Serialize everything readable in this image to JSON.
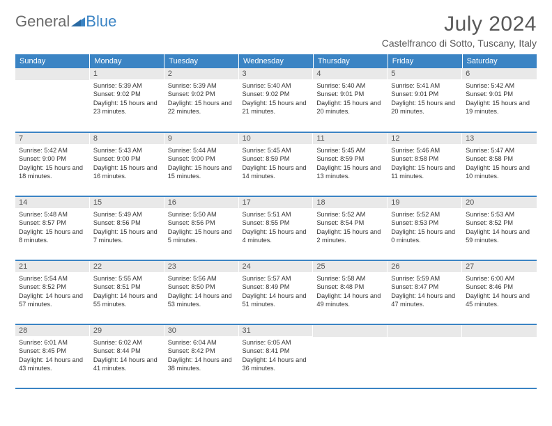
{
  "logo": {
    "text_general": "General",
    "text_blue": "Blue"
  },
  "title": "July 2024",
  "location": "Castelfranco di Sotto, Tuscany, Italy",
  "colors": {
    "header_bg": "#3b84c4",
    "header_text": "#ffffff",
    "daynum_bg": "#e9e9e9",
    "border": "#3b84c4",
    "body_text": "#333333",
    "title_text": "#595959",
    "logo_gray": "#6b6b6b",
    "logo_blue": "#3b84c4"
  },
  "day_headers": [
    "Sunday",
    "Monday",
    "Tuesday",
    "Wednesday",
    "Thursday",
    "Friday",
    "Saturday"
  ],
  "weeks": [
    [
      {
        "n": "",
        "sunrise": "",
        "sunset": "",
        "daylight": ""
      },
      {
        "n": "1",
        "sunrise": "Sunrise: 5:39 AM",
        "sunset": "Sunset: 9:02 PM",
        "daylight": "Daylight: 15 hours and 23 minutes."
      },
      {
        "n": "2",
        "sunrise": "Sunrise: 5:39 AM",
        "sunset": "Sunset: 9:02 PM",
        "daylight": "Daylight: 15 hours and 22 minutes."
      },
      {
        "n": "3",
        "sunrise": "Sunrise: 5:40 AM",
        "sunset": "Sunset: 9:02 PM",
        "daylight": "Daylight: 15 hours and 21 minutes."
      },
      {
        "n": "4",
        "sunrise": "Sunrise: 5:40 AM",
        "sunset": "Sunset: 9:01 PM",
        "daylight": "Daylight: 15 hours and 20 minutes."
      },
      {
        "n": "5",
        "sunrise": "Sunrise: 5:41 AM",
        "sunset": "Sunset: 9:01 PM",
        "daylight": "Daylight: 15 hours and 20 minutes."
      },
      {
        "n": "6",
        "sunrise": "Sunrise: 5:42 AM",
        "sunset": "Sunset: 9:01 PM",
        "daylight": "Daylight: 15 hours and 19 minutes."
      }
    ],
    [
      {
        "n": "7",
        "sunrise": "Sunrise: 5:42 AM",
        "sunset": "Sunset: 9:00 PM",
        "daylight": "Daylight: 15 hours and 18 minutes."
      },
      {
        "n": "8",
        "sunrise": "Sunrise: 5:43 AM",
        "sunset": "Sunset: 9:00 PM",
        "daylight": "Daylight: 15 hours and 16 minutes."
      },
      {
        "n": "9",
        "sunrise": "Sunrise: 5:44 AM",
        "sunset": "Sunset: 9:00 PM",
        "daylight": "Daylight: 15 hours and 15 minutes."
      },
      {
        "n": "10",
        "sunrise": "Sunrise: 5:45 AM",
        "sunset": "Sunset: 8:59 PM",
        "daylight": "Daylight: 15 hours and 14 minutes."
      },
      {
        "n": "11",
        "sunrise": "Sunrise: 5:45 AM",
        "sunset": "Sunset: 8:59 PM",
        "daylight": "Daylight: 15 hours and 13 minutes."
      },
      {
        "n": "12",
        "sunrise": "Sunrise: 5:46 AM",
        "sunset": "Sunset: 8:58 PM",
        "daylight": "Daylight: 15 hours and 11 minutes."
      },
      {
        "n": "13",
        "sunrise": "Sunrise: 5:47 AM",
        "sunset": "Sunset: 8:58 PM",
        "daylight": "Daylight: 15 hours and 10 minutes."
      }
    ],
    [
      {
        "n": "14",
        "sunrise": "Sunrise: 5:48 AM",
        "sunset": "Sunset: 8:57 PM",
        "daylight": "Daylight: 15 hours and 8 minutes."
      },
      {
        "n": "15",
        "sunrise": "Sunrise: 5:49 AM",
        "sunset": "Sunset: 8:56 PM",
        "daylight": "Daylight: 15 hours and 7 minutes."
      },
      {
        "n": "16",
        "sunrise": "Sunrise: 5:50 AM",
        "sunset": "Sunset: 8:56 PM",
        "daylight": "Daylight: 15 hours and 5 minutes."
      },
      {
        "n": "17",
        "sunrise": "Sunrise: 5:51 AM",
        "sunset": "Sunset: 8:55 PM",
        "daylight": "Daylight: 15 hours and 4 minutes."
      },
      {
        "n": "18",
        "sunrise": "Sunrise: 5:52 AM",
        "sunset": "Sunset: 8:54 PM",
        "daylight": "Daylight: 15 hours and 2 minutes."
      },
      {
        "n": "19",
        "sunrise": "Sunrise: 5:52 AM",
        "sunset": "Sunset: 8:53 PM",
        "daylight": "Daylight: 15 hours and 0 minutes."
      },
      {
        "n": "20",
        "sunrise": "Sunrise: 5:53 AM",
        "sunset": "Sunset: 8:52 PM",
        "daylight": "Daylight: 14 hours and 59 minutes."
      }
    ],
    [
      {
        "n": "21",
        "sunrise": "Sunrise: 5:54 AM",
        "sunset": "Sunset: 8:52 PM",
        "daylight": "Daylight: 14 hours and 57 minutes."
      },
      {
        "n": "22",
        "sunrise": "Sunrise: 5:55 AM",
        "sunset": "Sunset: 8:51 PM",
        "daylight": "Daylight: 14 hours and 55 minutes."
      },
      {
        "n": "23",
        "sunrise": "Sunrise: 5:56 AM",
        "sunset": "Sunset: 8:50 PM",
        "daylight": "Daylight: 14 hours and 53 minutes."
      },
      {
        "n": "24",
        "sunrise": "Sunrise: 5:57 AM",
        "sunset": "Sunset: 8:49 PM",
        "daylight": "Daylight: 14 hours and 51 minutes."
      },
      {
        "n": "25",
        "sunrise": "Sunrise: 5:58 AM",
        "sunset": "Sunset: 8:48 PM",
        "daylight": "Daylight: 14 hours and 49 minutes."
      },
      {
        "n": "26",
        "sunrise": "Sunrise: 5:59 AM",
        "sunset": "Sunset: 8:47 PM",
        "daylight": "Daylight: 14 hours and 47 minutes."
      },
      {
        "n": "27",
        "sunrise": "Sunrise: 6:00 AM",
        "sunset": "Sunset: 8:46 PM",
        "daylight": "Daylight: 14 hours and 45 minutes."
      }
    ],
    [
      {
        "n": "28",
        "sunrise": "Sunrise: 6:01 AM",
        "sunset": "Sunset: 8:45 PM",
        "daylight": "Daylight: 14 hours and 43 minutes."
      },
      {
        "n": "29",
        "sunrise": "Sunrise: 6:02 AM",
        "sunset": "Sunset: 8:44 PM",
        "daylight": "Daylight: 14 hours and 41 minutes."
      },
      {
        "n": "30",
        "sunrise": "Sunrise: 6:04 AM",
        "sunset": "Sunset: 8:42 PM",
        "daylight": "Daylight: 14 hours and 38 minutes."
      },
      {
        "n": "31",
        "sunrise": "Sunrise: 6:05 AM",
        "sunset": "Sunset: 8:41 PM",
        "daylight": "Daylight: 14 hours and 36 minutes."
      },
      {
        "n": "",
        "sunrise": "",
        "sunset": "",
        "daylight": ""
      },
      {
        "n": "",
        "sunrise": "",
        "sunset": "",
        "daylight": ""
      },
      {
        "n": "",
        "sunrise": "",
        "sunset": "",
        "daylight": ""
      }
    ]
  ]
}
